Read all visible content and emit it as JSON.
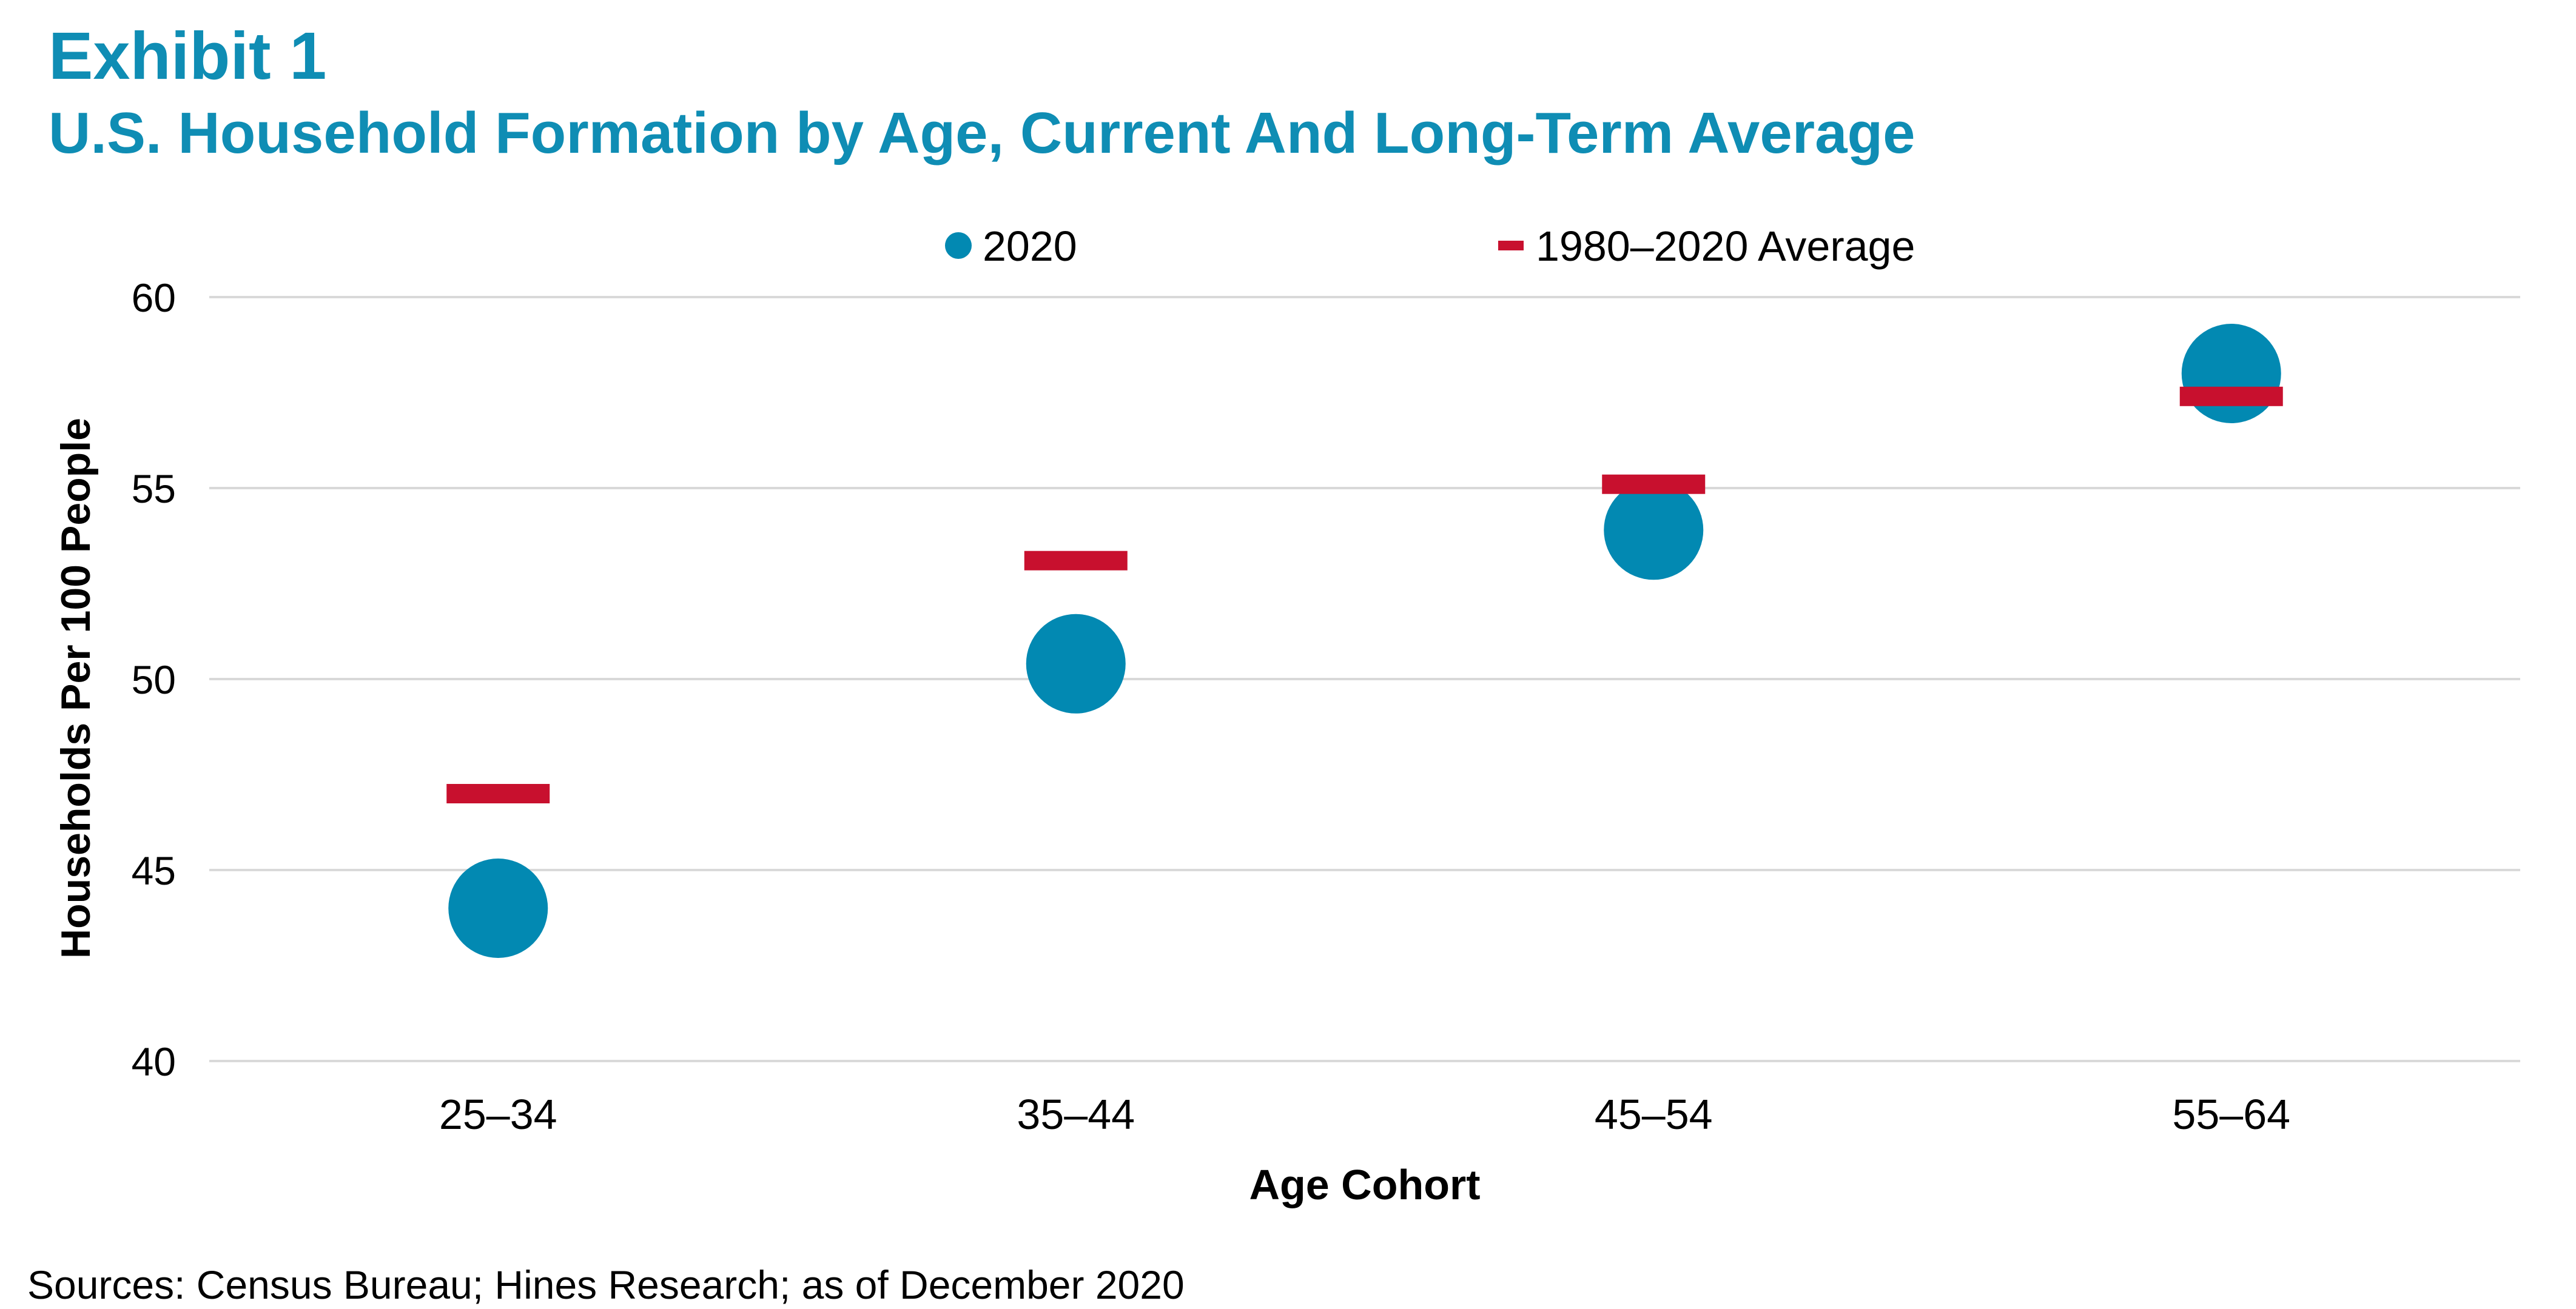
{
  "header": {
    "title": "Exhibit 1",
    "subtitle": "U.S. Household Formation by Age, Current And Long-Term Average"
  },
  "colors": {
    "title": "#0f8db4",
    "point_2020": "#0289b2",
    "average_marker": "#c8102e",
    "gridline": "#d9d9d9",
    "text": "#000000"
  },
  "legend": {
    "items": [
      {
        "label": "2020",
        "icon": "filled-circle-icon"
      },
      {
        "label": "1980–2020 Average",
        "icon": "dash-marker-icon"
      }
    ]
  },
  "chart_data": {
    "type": "scatter",
    "xlabel": "Age Cohort",
    "ylabel": "Households Per 100 People",
    "categories": [
      "25–34",
      "35–44",
      "45–54",
      "55–64"
    ],
    "ylim": [
      40,
      60
    ],
    "yticks": [
      "40",
      "45",
      "50",
      "55",
      "60"
    ],
    "grid": true,
    "legend_position": "top-center",
    "series": [
      {
        "name": "2020",
        "marker": "circle",
        "values": [
          44.0,
          50.4,
          53.9,
          58.0
        ]
      },
      {
        "name": "1980–2020 Average",
        "marker": "dash",
        "values": [
          47.0,
          53.1,
          55.1,
          57.4
        ]
      }
    ]
  },
  "footer": {
    "source": "Sources: Census Bureau; Hines Research; as of December 2020"
  }
}
